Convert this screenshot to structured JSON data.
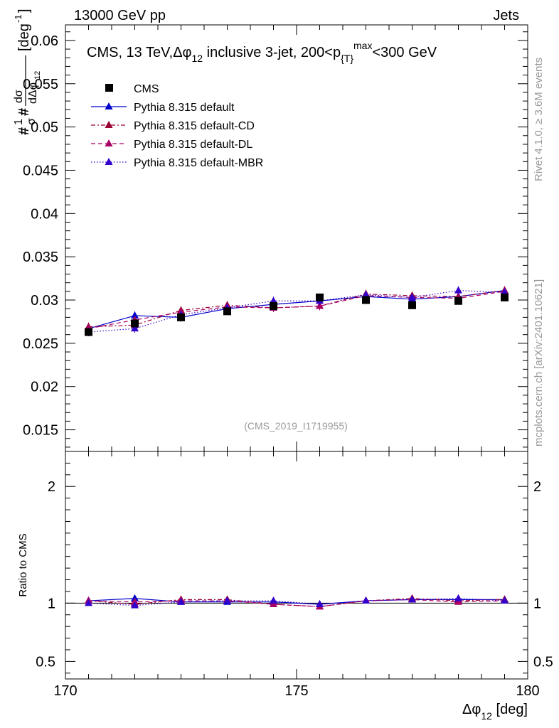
{
  "header": {
    "left": "13000 GeV pp",
    "right": "Jets"
  },
  "side_text": {
    "rivet": "Rivet 4.1.0, ≥ 3.6M events",
    "mcplots": "mcplots.cern.ch [arXiv:2401.10621]"
  },
  "chart_data": {
    "type": "line",
    "title": "CMS, 13 TeV, Δφ₁₂ inclusive 3-jet, 200<p{T}^max<300 GeV",
    "title_parts": {
      "pre": "CMS, 13 TeV,",
      "dphi": "Δφ",
      "sub12": "12",
      "mid": " inclusive 3-jet, 200<p",
      "subT": "{T}",
      "supmax": "max",
      "post": "<300 GeV"
    },
    "watermark": "(CMS_2019_I1719955)",
    "xlabel": {
      "main": "Δφ",
      "sub": "12",
      "unit": " [deg]"
    },
    "ylabel": "#frac{1}{σ}#frac{dσ}{dΔφ_{12}} [deg^{-1}]",
    "ylabel_parts": {
      "frac1": "1",
      "sigma": "σ",
      "dsigma": "dσ",
      "ddphi": "dΔφ",
      "sub": "12",
      "unit": "[deg",
      "exp": "-1",
      "close": "]"
    },
    "ratio_ylabel": "Ratio to CMS",
    "xlim": [
      170,
      180
    ],
    "ylim": [
      0.0125,
      0.0618
    ],
    "ratio_ylim": [
      0.35,
      2.3
    ],
    "x_ticks": [
      170,
      175,
      180
    ],
    "y_ticks": [
      0.015,
      0.02,
      0.025,
      0.03,
      0.035,
      0.04,
      0.045,
      0.05,
      0.055,
      0.06
    ],
    "y_tick_labels": [
      "0.015",
      "0.02",
      "0.025",
      "0.03",
      "0.035",
      "0.04",
      "0.045",
      "0.05",
      "0.055",
      "0.06"
    ],
    "ratio_ticks": [
      0.5,
      1,
      2
    ],
    "ratio_tick_labels": [
      "0.5",
      "1",
      "2"
    ],
    "x_tick_labels": [
      "170",
      "175",
      "180"
    ],
    "x": [
      170.5,
      171.5,
      172.5,
      173.5,
      174.5,
      175.5,
      176.5,
      177.5,
      178.5,
      179.5
    ],
    "series": [
      {
        "name": "CMS",
        "style": "marker",
        "color": "#000000",
        "values": [
          0.0263,
          0.0273,
          0.028,
          0.0287,
          0.0293,
          0.0303,
          0.03,
          0.0294,
          0.0299,
          0.0303
        ]
      },
      {
        "name": "Pythia 8.315 default",
        "style": "solid",
        "color": "#0000cc",
        "values": [
          0.0267,
          0.0282,
          0.028,
          0.029,
          0.0295,
          0.0299,
          0.0304,
          0.0301,
          0.0304,
          0.0311
        ]
      },
      {
        "name": "Pythia 8.315 default-CD",
        "style": "dashdot",
        "color": "#990033",
        "values": [
          0.0269,
          0.0271,
          0.0288,
          0.0294,
          0.0291,
          0.0293,
          0.0307,
          0.0305,
          0.0304,
          0.0311
        ]
      },
      {
        "name": "Pythia 8.315 default-DL",
        "style": "dashed",
        "color": "#aa0066",
        "values": [
          0.0267,
          0.0277,
          0.0286,
          0.0292,
          0.0291,
          0.0293,
          0.0305,
          0.0303,
          0.0302,
          0.031
        ]
      },
      {
        "name": "Pythia 8.315 default-MBR",
        "style": "dotted",
        "color": "#3300cc",
        "values": [
          0.0263,
          0.0267,
          0.0283,
          0.0291,
          0.0299,
          0.0299,
          0.0306,
          0.0303,
          0.0311,
          0.0309
        ]
      }
    ],
    "ratio_series": [
      {
        "name": "Pythia 8.315 default",
        "values": [
          1.02,
          1.04,
          1.01,
          1.01,
          1.01,
          0.99,
          1.02,
          1.03,
          1.03,
          1.03
        ]
      },
      {
        "name": "Pythia 8.315 default-CD",
        "values": [
          1.02,
          0.99,
          1.03,
          1.03,
          0.99,
          0.97,
          1.02,
          1.04,
          1.02,
          1.03
        ]
      },
      {
        "name": "Pythia 8.315 default-DL",
        "values": [
          1.02,
          1.01,
          1.02,
          1.02,
          0.99,
          0.97,
          1.02,
          1.03,
          1.01,
          1.02
        ]
      },
      {
        "name": "Pythia 8.315 default-MBR",
        "values": [
          1.0,
          0.98,
          1.01,
          1.02,
          1.02,
          0.99,
          1.02,
          1.03,
          1.04,
          1.02
        ]
      }
    ],
    "legend_position": "top-left"
  }
}
